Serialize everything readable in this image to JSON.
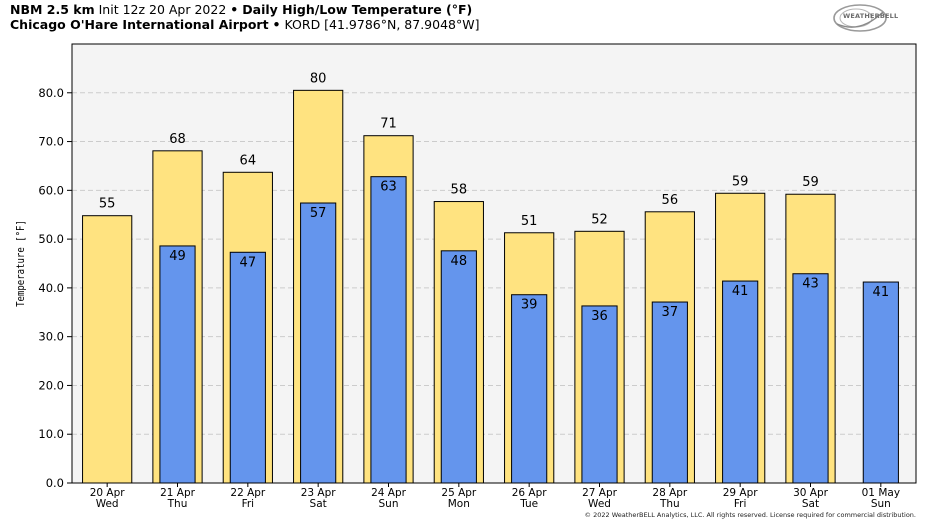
{
  "header": {
    "model": "NBM 2.5 km",
    "init": "Init 12z 20 Apr 2022",
    "sep1": "•",
    "product": "Daily High/Low Temperature (°F)",
    "station_name": "Chicago O'Hare International Airport",
    "sep2": "•",
    "station_code": "KORD [41.9786°N, 87.9048°W]"
  },
  "logo": {
    "text": "WEATHERBELL"
  },
  "copyright": "© 2022 WeatherBELL Analytics, LLC. All rights reserved. License required for commercial distribution.",
  "colors": {
    "high": "#ffe380",
    "low": "#6495ed",
    "plot_bg": "#f4f4f4",
    "grid": "#cccccc",
    "outline": "#000000"
  },
  "chart_data": {
    "type": "bar",
    "ylabel": "Temperature [°F]",
    "ylim": [
      0,
      90
    ],
    "yticks": [
      "0.0",
      "10.0",
      "20.0",
      "30.0",
      "40.0",
      "50.0",
      "60.0",
      "70.0",
      "80.0"
    ],
    "categories": [
      [
        "20 Apr",
        "Wed"
      ],
      [
        "21 Apr",
        "Thu"
      ],
      [
        "22 Apr",
        "Fri"
      ],
      [
        "23 Apr",
        "Sat"
      ],
      [
        "24 Apr",
        "Sun"
      ],
      [
        "25 Apr",
        "Mon"
      ],
      [
        "26 Apr",
        "Tue"
      ],
      [
        "27 Apr",
        "Wed"
      ],
      [
        "28 Apr",
        "Thu"
      ],
      [
        "29 Apr",
        "Fri"
      ],
      [
        "30 Apr",
        "Sat"
      ],
      [
        "01 May",
        "Sun"
      ]
    ],
    "series": [
      {
        "key": "high",
        "values": [
          54.8,
          68.1,
          63.7,
          80.5,
          71.2,
          57.7,
          51.3,
          51.6,
          55.6,
          59.4,
          59.2,
          null
        ],
        "labels": [
          "55",
          "68",
          "64",
          "80",
          "71",
          "58",
          "51",
          "52",
          "56",
          "59",
          "59",
          ""
        ]
      },
      {
        "key": "low",
        "values": [
          null,
          48.6,
          47.3,
          57.4,
          62.8,
          47.6,
          38.6,
          36.3,
          37.1,
          41.4,
          42.9,
          41.2
        ],
        "labels": [
          "",
          "49",
          "47",
          "57",
          "63",
          "48",
          "39",
          "36",
          "37",
          "41",
          "43",
          "41"
        ]
      }
    ],
    "grid": true,
    "legend": "none"
  }
}
